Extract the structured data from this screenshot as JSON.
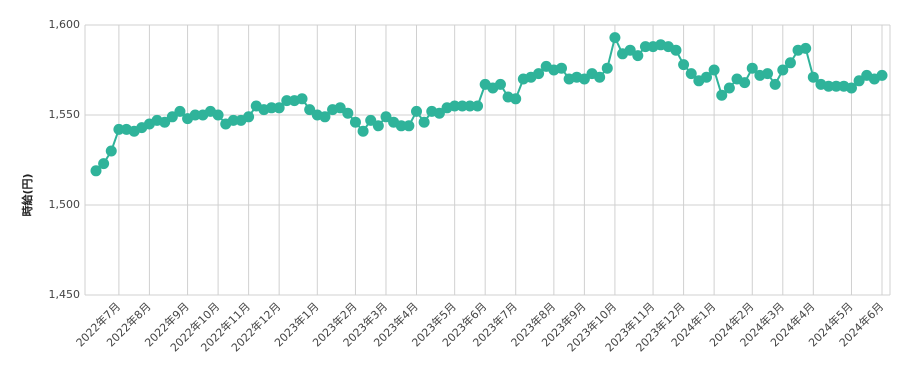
{
  "chart_data": {
    "type": "line",
    "y_label": "時給(円)",
    "color": "#2fb39a",
    "grid": true,
    "ylim": [
      1450,
      1600
    ],
    "yticks": [
      {
        "value": 1450,
        "label": "1,450"
      },
      {
        "value": 1500,
        "label": "1,500"
      },
      {
        "value": 1550,
        "label": "1,550"
      },
      {
        "value": 1600,
        "label": "1,600"
      }
    ],
    "categories": [
      null,
      null,
      null,
      "2022年7月",
      null,
      null,
      null,
      "2022年8月",
      null,
      null,
      null,
      null,
      "2022年9月",
      null,
      null,
      null,
      "2022年10月",
      null,
      null,
      null,
      "2022年11月",
      null,
      null,
      null,
      "2022年12月",
      null,
      null,
      null,
      null,
      "2023年1月",
      null,
      null,
      null,
      null,
      "2023年2月",
      null,
      null,
      null,
      "2023年3月",
      null,
      null,
      null,
      "2023年4月",
      null,
      null,
      null,
      null,
      "2023年5月",
      null,
      null,
      null,
      "2023年6月",
      null,
      null,
      null,
      "2023年7月",
      null,
      null,
      null,
      null,
      "2023年8月",
      null,
      null,
      null,
      "2023年9月",
      null,
      null,
      null,
      "2023年10月",
      null,
      null,
      null,
      null,
      "2023年11月",
      null,
      null,
      null,
      "2023年12月",
      null,
      null,
      null,
      "2024年1月",
      null,
      null,
      null,
      null,
      "2024年2月",
      null,
      null,
      null,
      "2024年3月",
      null,
      null,
      null,
      "2024年4月",
      null,
      null,
      null,
      null,
      "2024年5月",
      null,
      null,
      null,
      "2024年6月"
    ],
    "values": [
      1519,
      1523,
      1530,
      1542,
      1542,
      1541,
      1543,
      1545,
      1547,
      1546,
      1549,
      1552,
      1548,
      1550,
      1550,
      1552,
      1550,
      1545,
      1547,
      1547,
      1549,
      1555,
      1553,
      1554,
      1554,
      1558,
      1558,
      1559,
      1553,
      1550,
      1549,
      1553,
      1554,
      1551,
      1546,
      1541,
      1547,
      1544,
      1549,
      1546,
      1544,
      1544,
      1552,
      1546,
      1552,
      1551,
      1554,
      1555,
      1555,
      1555,
      1555,
      1567,
      1565,
      1567,
      1560,
      1559,
      1570,
      1571,
      1573,
      1577,
      1575,
      1576,
      1570,
      1571,
      1570,
      1573,
      1571,
      1576,
      1593,
      1584,
      1586,
      1583,
      1588,
      1588,
      1589,
      1588,
      1586,
      1578,
      1573,
      1569,
      1571,
      1575,
      1561,
      1565,
      1570,
      1568,
      1576,
      1572,
      1573,
      1567,
      1575,
      1579,
      1586,
      1587,
      1571,
      1567,
      1566,
      1566,
      1566,
      1565,
      1569,
      1572,
      1570,
      1572
    ]
  }
}
